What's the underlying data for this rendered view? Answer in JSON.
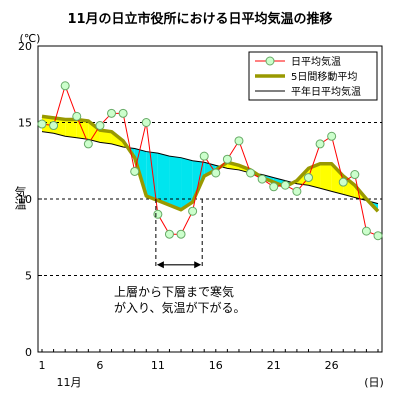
{
  "chart_data": {
    "type": "line",
    "title": "11月の日立市役所における日平均気温の推移",
    "y_unit_label": "(℃)",
    "ylabel": "気温",
    "x_unit_label": "(日)",
    "x_month_label": "11月",
    "xlim": [
      1,
      30
    ],
    "ylim": [
      0,
      20
    ],
    "x_ticks": [
      1,
      6,
      11,
      16,
      21,
      26
    ],
    "y_ticks": [
      0,
      5,
      10,
      15,
      20
    ],
    "dashed_gridlines_y": [
      5,
      10,
      15
    ],
    "days": [
      1,
      2,
      3,
      4,
      5,
      6,
      7,
      8,
      9,
      10,
      11,
      12,
      13,
      14,
      15,
      16,
      17,
      18,
      19,
      20,
      21,
      22,
      23,
      24,
      25,
      26,
      27,
      28,
      29,
      30
    ],
    "series": [
      {
        "name": "日平均気温",
        "color": "#ff0000",
        "marker_fill": "#ccffcc",
        "marker_stroke": "#66aa66",
        "values": [
          14.9,
          14.8,
          17.4,
          15.4,
          13.6,
          14.8,
          15.6,
          15.6,
          11.8,
          15.0,
          9.0,
          7.7,
          7.7,
          9.2,
          12.8,
          11.7,
          12.6,
          13.8,
          11.7,
          11.3,
          10.8,
          10.9,
          10.5,
          11.4,
          13.6,
          14.1,
          11.1,
          11.6,
          7.9,
          7.6
        ]
      },
      {
        "name": "5日間移動平均",
        "color": "#999900",
        "values": [
          15.4,
          15.3,
          15.2,
          15.2,
          15.1,
          14.5,
          14.4,
          13.8,
          12.7,
          10.2,
          9.9,
          9.6,
          9.3,
          9.8,
          11.5,
          11.9,
          12.4,
          12.2,
          11.9,
          11.4,
          11.1,
          10.8,
          11.2,
          12.0,
          12.3,
          12.3,
          11.5,
          10.9,
          10.0,
          9.2
        ]
      },
      {
        "name": "平年日平均気温",
        "color": "#000000",
        "values": [
          14.4,
          14.3,
          14.1,
          14.0,
          13.9,
          13.7,
          13.6,
          13.4,
          13.3,
          13.1,
          13.0,
          12.8,
          12.7,
          12.5,
          12.4,
          12.2,
          12.0,
          11.9,
          11.7,
          11.6,
          11.4,
          11.2,
          11.0,
          10.9,
          10.7,
          10.5,
          10.3,
          10.1,
          9.9,
          9.7
        ]
      }
    ],
    "fill_above_normal_color": "#ffff00",
    "fill_below_normal_color": "#00e5ee",
    "annotation": {
      "text_line1": "上層から下層まで寒気",
      "text_line2": "が入り、気温が下がる。",
      "range_days": [
        11,
        15
      ]
    },
    "legend": "top-right",
    "grid": true
  }
}
